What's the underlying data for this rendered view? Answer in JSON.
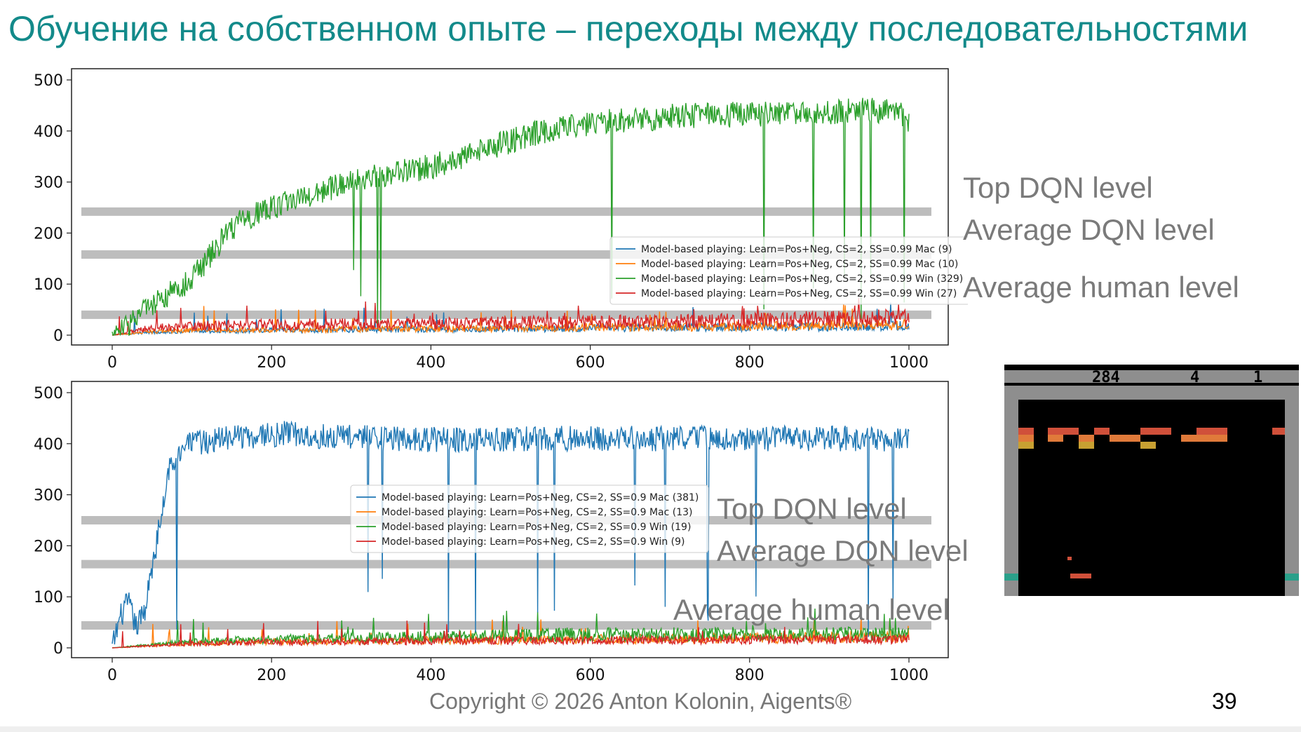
{
  "slide": {
    "title": "Обучение на собственном опыте – переходы между последовательностями",
    "copyright": "Copyright © 2026 Anton Kolonin, Aigents®",
    "page_number": "39"
  },
  "levels": {
    "top_dqn": "Top DQN level",
    "average_dqn": "Average DQN level",
    "average_human": "Average human level"
  },
  "game": {
    "score": "284",
    "lives": "4",
    "player": "1",
    "icon": "breakout-game-screenshot"
  },
  "chart_data": [
    {
      "type": "line",
      "title": "",
      "xlabel": "",
      "ylabel": "",
      "xlim": [
        0,
        1000
      ],
      "ylim": [
        0,
        500
      ],
      "x_ticks": [
        0,
        200,
        400,
        600,
        800,
        1000
      ],
      "y_ticks": [
        0,
        100,
        200,
        300,
        400,
        500
      ],
      "legend_position": "center-right",
      "reference_bands": [
        {
          "name": "Top DQN level",
          "value": 242
        },
        {
          "name": "Average DQN level",
          "value": 158
        },
        {
          "name": "Average human level",
          "value": 40
        }
      ],
      "series": [
        {
          "name": "Model-based playing: Learn=Pos+Neg, CS=2, SS=0.99 Mac (9)",
          "color": "#1f77b4",
          "x": [
            0,
            50,
            100,
            150,
            200,
            250,
            300,
            350,
            400,
            450,
            500,
            550,
            600,
            650,
            700,
            750,
            800,
            850,
            900,
            950,
            1000
          ],
          "values": [
            0,
            5,
            6,
            7,
            8,
            8,
            9,
            9,
            10,
            10,
            10,
            11,
            11,
            12,
            12,
            13,
            13,
            14,
            14,
            15,
            15
          ]
        },
        {
          "name": "Model-based playing: Learn=Pos+Neg, CS=2, SS=0.99 Mac (10)",
          "color": "#ff7f0e",
          "x": [
            0,
            50,
            100,
            150,
            200,
            250,
            300,
            350,
            400,
            450,
            500,
            550,
            600,
            650,
            700,
            750,
            800,
            850,
            900,
            950,
            1000
          ],
          "values": [
            0,
            6,
            8,
            8,
            9,
            9,
            10,
            10,
            11,
            11,
            12,
            12,
            13,
            13,
            14,
            14,
            15,
            15,
            16,
            17,
            18
          ]
        },
        {
          "name": "Model-based playing: Learn=Pos+Neg, CS=2, SS=0.99 Win (329)",
          "color": "#2ca02c",
          "x": [
            0,
            20,
            40,
            60,
            80,
            100,
            120,
            140,
            160,
            180,
            200,
            220,
            240,
            260,
            280,
            300,
            320,
            340,
            360,
            380,
            400,
            420,
            440,
            460,
            480,
            500,
            520,
            540,
            560,
            580,
            600,
            620,
            640,
            660,
            680,
            700,
            720,
            740,
            760,
            780,
            800,
            820,
            840,
            860,
            880,
            900,
            920,
            940,
            960,
            980,
            1000
          ],
          "values": [
            0,
            20,
            50,
            70,
            90,
            110,
            150,
            190,
            220,
            240,
            250,
            260,
            270,
            280,
            290,
            300,
            310,
            315,
            320,
            325,
            330,
            340,
            350,
            360,
            370,
            380,
            390,
            400,
            405,
            410,
            415,
            420,
            420,
            425,
            425,
            430,
            430,
            430,
            430,
            432,
            432,
            434,
            434,
            436,
            436,
            438,
            438,
            440,
            440,
            442,
            420
          ]
        },
        {
          "name": "Model-based playing: Learn=Pos+Neg, CS=2, SS=0.99 Win (27)",
          "color": "#d62728",
          "x": [
            0,
            50,
            100,
            150,
            200,
            250,
            300,
            350,
            400,
            450,
            500,
            550,
            600,
            650,
            700,
            750,
            800,
            850,
            900,
            950,
            1000
          ],
          "values": [
            0,
            12,
            15,
            16,
            17,
            18,
            18,
            19,
            19,
            20,
            20,
            21,
            21,
            22,
            22,
            23,
            24,
            25,
            26,
            27,
            28
          ]
        }
      ]
    },
    {
      "type": "line",
      "title": "",
      "xlabel": "",
      "ylabel": "",
      "xlim": [
        0,
        1000
      ],
      "ylim": [
        0,
        500
      ],
      "x_ticks": [
        0,
        200,
        400,
        600,
        800,
        1000
      ],
      "y_ticks": [
        0,
        100,
        200,
        300,
        400,
        500
      ],
      "legend_position": "center",
      "reference_bands": [
        {
          "name": "Top DQN level",
          "value": 250
        },
        {
          "name": "Average DQN level",
          "value": 164
        },
        {
          "name": "Average human level",
          "value": 44
        }
      ],
      "series": [
        {
          "name": "Model-based playing: Learn=Pos+Neg, CS=2, SS=0.9 Mac (381)",
          "color": "#1f77b4",
          "x": [
            0,
            10,
            20,
            30,
            40,
            50,
            60,
            70,
            80,
            90,
            100,
            120,
            140,
            160,
            180,
            200,
            220,
            240,
            260,
            280,
            300,
            350,
            400,
            450,
            500,
            550,
            600,
            650,
            700,
            750,
            800,
            850,
            900,
            950,
            1000
          ],
          "values": [
            0,
            60,
            90,
            40,
            70,
            150,
            250,
            340,
            380,
            395,
            400,
            405,
            410,
            415,
            415,
            418,
            420,
            418,
            415,
            415,
            412,
            410,
            408,
            408,
            410,
            410,
            410,
            410,
            410,
            410,
            410,
            410,
            410,
            410,
            410
          ]
        },
        {
          "name": "Model-based playing: Learn=Pos+Neg, CS=2, SS=0.9 Mac (13)",
          "color": "#ff7f0e",
          "x": [
            0,
            100,
            200,
            300,
            400,
            500,
            600,
            700,
            800,
            900,
            1000
          ],
          "values": [
            0,
            8,
            10,
            11,
            12,
            13,
            14,
            15,
            16,
            17,
            18
          ]
        },
        {
          "name": "Model-based playing: Learn=Pos+Neg, CS=2, SS=0.9 Win (19)",
          "color": "#2ca02c",
          "x": [
            0,
            100,
            200,
            300,
            400,
            500,
            600,
            700,
            800,
            900,
            1000
          ],
          "values": [
            0,
            10,
            14,
            16,
            18,
            20,
            22,
            22,
            22,
            22,
            23
          ]
        },
        {
          "name": "Model-based playing: Learn=Pos+Neg, CS=2, SS=0.9 Win (9)",
          "color": "#d62728",
          "x": [
            0,
            100,
            200,
            300,
            400,
            500,
            600,
            700,
            800,
            900,
            1000
          ],
          "values": [
            0,
            7,
            9,
            10,
            11,
            12,
            12,
            13,
            13,
            14,
            14
          ]
        }
      ]
    }
  ]
}
